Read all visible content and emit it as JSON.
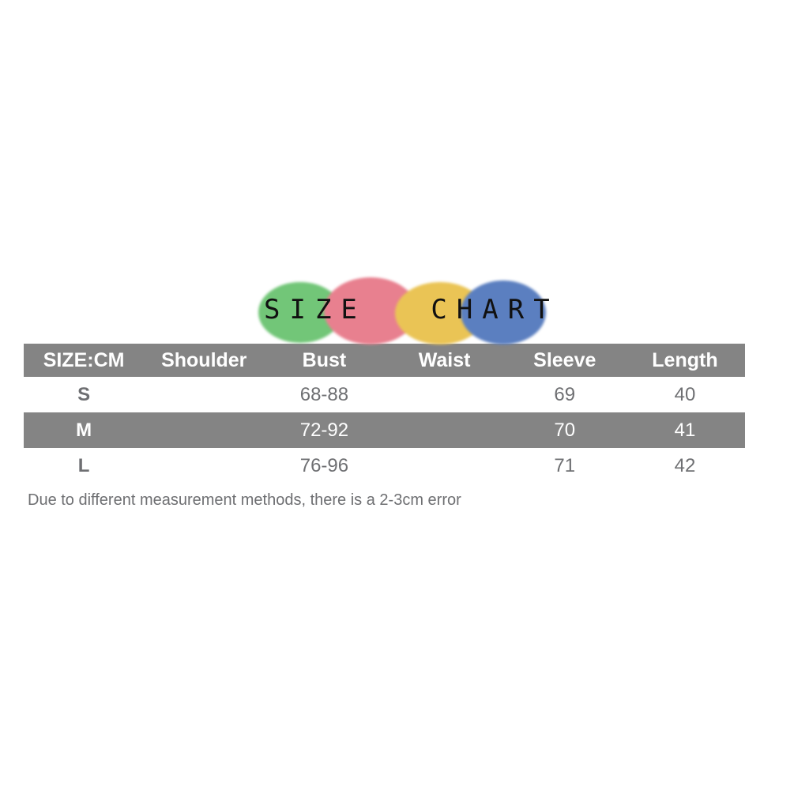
{
  "title": {
    "text": "SIZE CHART",
    "circles": [
      {
        "name": "green-circle",
        "color": "#72c678"
      },
      {
        "name": "pink-circle",
        "color": "#e8808f"
      },
      {
        "name": "yellow-circle",
        "color": "#eac455"
      },
      {
        "name": "blue-circle",
        "color": "#5b7fc0"
      }
    ]
  },
  "table": {
    "headers": [
      "SIZE:CM",
      "Shoulder",
      "Bust",
      "Waist",
      "Sleeve",
      "Length"
    ],
    "rows": [
      {
        "size": "S",
        "highlight": false,
        "cells": [
          "S",
          "",
          "68-88",
          "",
          "69",
          "40"
        ]
      },
      {
        "size": "M",
        "highlight": true,
        "cells": [
          "M",
          "",
          "72-92",
          "",
          "70",
          "41"
        ]
      },
      {
        "size": "L",
        "highlight": false,
        "cells": [
          "L",
          "",
          "76-96",
          "",
          "71",
          "42"
        ]
      }
    ],
    "colors": {
      "header_bg": "#848484",
      "header_text": "#ffffff",
      "highlight_row_bg": "#848484",
      "highlight_row_text": "#ffffff",
      "body_text": "#6e6f72"
    }
  },
  "note": "Due to different measurement methods, there is a 2-3cm error"
}
